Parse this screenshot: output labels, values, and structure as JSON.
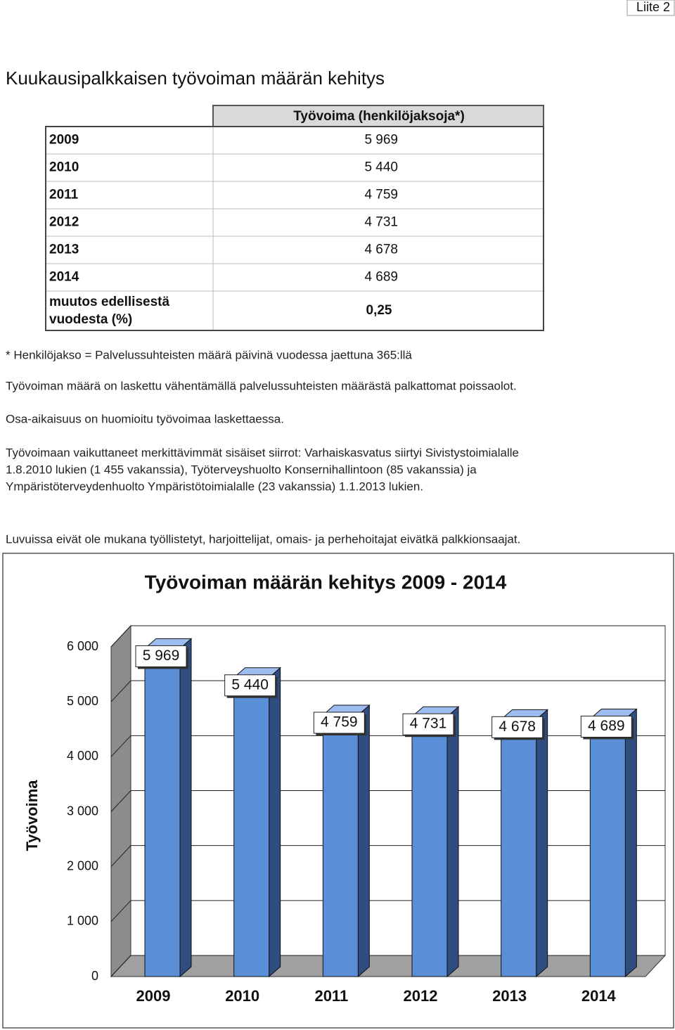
{
  "header": {
    "corner": "Liite 2",
    "title": "Kuukausipalkkaisen työvoiman määrän kehitys"
  },
  "table": {
    "column_header": "Työvoima (henkilöjaksoja*)",
    "rows": [
      [
        "2009",
        "5 969"
      ],
      [
        "2010",
        "5 440"
      ],
      [
        "2011",
        "4 759"
      ],
      [
        "2012",
        "4 731"
      ],
      [
        "2013",
        "4 678"
      ],
      [
        "2014",
        "4 689"
      ]
    ],
    "change": {
      "label": [
        "muutos edellisestä",
        "vuodesta (%)"
      ],
      "value": "0,25"
    }
  },
  "notes": [
    [
      "* Henkilöjakso = Palvelussuhteisten määrä päivinä vuodessa jaettuna 365:llä"
    ],
    [
      "Työvoiman määrä on laskettu vähentämällä palvelussuhteisten määrästä palkattomat poissaolot."
    ],
    [
      "Osa-aikaisuus on huomioitu työvoimaa laskettaessa."
    ],
    [
      "Työvoimaan vaikuttaneet merkittävimmät sisäiset siirrot: Varhaiskasvatus siirtyi Sivistystoimialalle",
      "1.8.2010 lukien (1 455 vakanssia), Työterveyshuolto Konsernihallintoon (85 vakanssia) ja",
      "Ympäristöterveydenhuolto Ympäristötoimialalle (23 vakanssia) 1.1.2013 lukien."
    ],
    [
      "Luvuissa eivät ole mukana työllistetyt, harjoittelijat, omais- ja perhehoitajat eivätkä palkkionsaajat."
    ]
  ],
  "chart_data": {
    "type": "bar",
    "style": "3d",
    "title": "Työvoiman määrän kehitys 2009 - 2014",
    "y_label": "Työvoima",
    "categories": [
      "2009",
      "2010",
      "2011",
      "2012",
      "2013",
      "2014"
    ],
    "values": [
      5969,
      5440,
      4759,
      4731,
      4678,
      4689
    ],
    "value_labels": [
      "5 969",
      "5 440",
      "4 759",
      "4 731",
      "4 678",
      "4 689"
    ],
    "color": "#5a8fd8",
    "ylim": [
      0,
      6000
    ],
    "yticks": [
      0,
      {
        "value": 1000,
        "label": "1 000"
      },
      {
        "value": 2000,
        "label": "2 000"
      },
      {
        "value": 3000,
        "label": "3 000"
      },
      {
        "value": 4000,
        "label": "4 000"
      },
      {
        "value": 5000,
        "label": "5 000"
      },
      {
        "value": 6000,
        "label": "6 000"
      }
    ],
    "grid": true
  }
}
